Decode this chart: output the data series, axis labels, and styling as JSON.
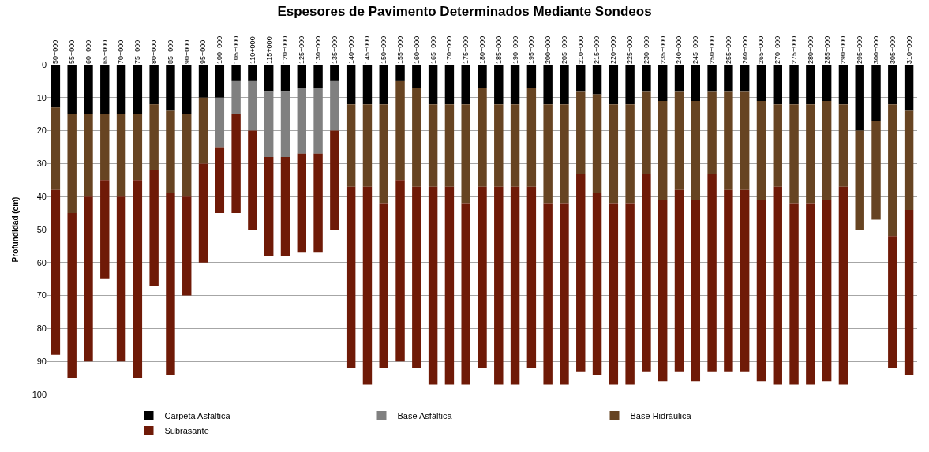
{
  "chart_data": {
    "type": "bar",
    "stacked": true,
    "title": "Espesores de Pavimento Determinados Mediante Sondeos",
    "ylabel": "Profundidad (cm)",
    "categories": [
      "50+000",
      "55+000",
      "60+000",
      "65+000",
      "70+000",
      "75+000",
      "80+000",
      "85+000",
      "90+000",
      "95+000",
      "100+000",
      "105+000",
      "110+000",
      "115+000",
      "120+000",
      "125+000",
      "130+000",
      "135+000",
      "140+000",
      "145+000",
      "150+000",
      "155+000",
      "160+000",
      "165+000",
      "170+000",
      "175+000",
      "180+000",
      "185+000",
      "190+000",
      "195+000",
      "200+000",
      "205+000",
      "210+000",
      "215+000",
      "220+000",
      "225+000",
      "230+000",
      "235+000",
      "240+000",
      "245+000",
      "250+000",
      "255+000",
      "260+000",
      "265+000",
      "270+000",
      "275+000",
      "280+000",
      "285+000",
      "290+000",
      "295+000",
      "300+000",
      "305+000",
      "310+000"
    ],
    "series": [
      {
        "name": "Carpeta Asfáltica",
        "color": "#000000",
        "values": [
          13,
          15,
          15,
          15,
          15,
          15,
          12,
          14,
          15,
          10,
          10,
          5,
          5,
          8,
          8,
          7,
          7,
          5,
          12,
          12,
          12,
          5,
          7,
          12,
          12,
          12,
          7,
          12,
          12,
          7,
          12,
          12,
          8,
          9,
          12,
          12,
          8,
          11,
          8,
          11,
          8,
          8,
          8,
          11,
          12,
          12,
          12,
          11,
          12,
          20,
          17,
          12,
          14
        ]
      },
      {
        "name": "Base Asfáltica",
        "color": "#808080",
        "values": [
          null,
          null,
          null,
          null,
          null,
          null,
          null,
          null,
          null,
          null,
          15,
          10,
          15,
          20,
          20,
          20,
          20,
          15,
          null,
          null,
          null,
          null,
          null,
          null,
          null,
          null,
          null,
          null,
          null,
          null,
          null,
          null,
          null,
          null,
          null,
          null,
          null,
          null,
          null,
          null,
          null,
          null,
          null,
          null,
          null,
          null,
          null,
          null,
          null,
          null,
          null,
          null,
          null
        ]
      },
      {
        "name": "Base Hidráulica",
        "color": "#674422",
        "values": [
          25,
          30,
          25,
          20,
          25,
          20,
          20,
          25,
          25,
          20,
          null,
          null,
          null,
          null,
          null,
          null,
          null,
          null,
          25,
          25,
          30,
          30,
          30,
          25,
          25,
          30,
          30,
          25,
          25,
          30,
          30,
          30,
          25,
          30,
          30,
          30,
          25,
          30,
          30,
          30,
          25,
          30,
          30,
          30,
          25,
          30,
          30,
          30,
          25,
          30,
          30,
          40,
          30
        ]
      },
      {
        "name": "Subrasante",
        "color": "#6f1a07",
        "values": [
          50,
          50,
          50,
          30,
          50,
          60,
          35,
          55,
          30,
          30,
          20,
          30,
          30,
          30,
          30,
          30,
          30,
          30,
          55,
          60,
          50,
          55,
          55,
          60,
          60,
          55,
          55,
          60,
          60,
          55,
          55,
          55,
          60,
          55,
          55,
          55,
          60,
          55,
          55,
          55,
          60,
          55,
          55,
          55,
          60,
          55,
          55,
          55,
          60,
          null,
          null,
          40,
          50
        ]
      }
    ],
    "ylim": [
      100,
      0
    ],
    "yticks": [
      0,
      10,
      20,
      30,
      40,
      50,
      60,
      70,
      80,
      90,
      100
    ],
    "grid": "y",
    "legend": "bottom"
  }
}
